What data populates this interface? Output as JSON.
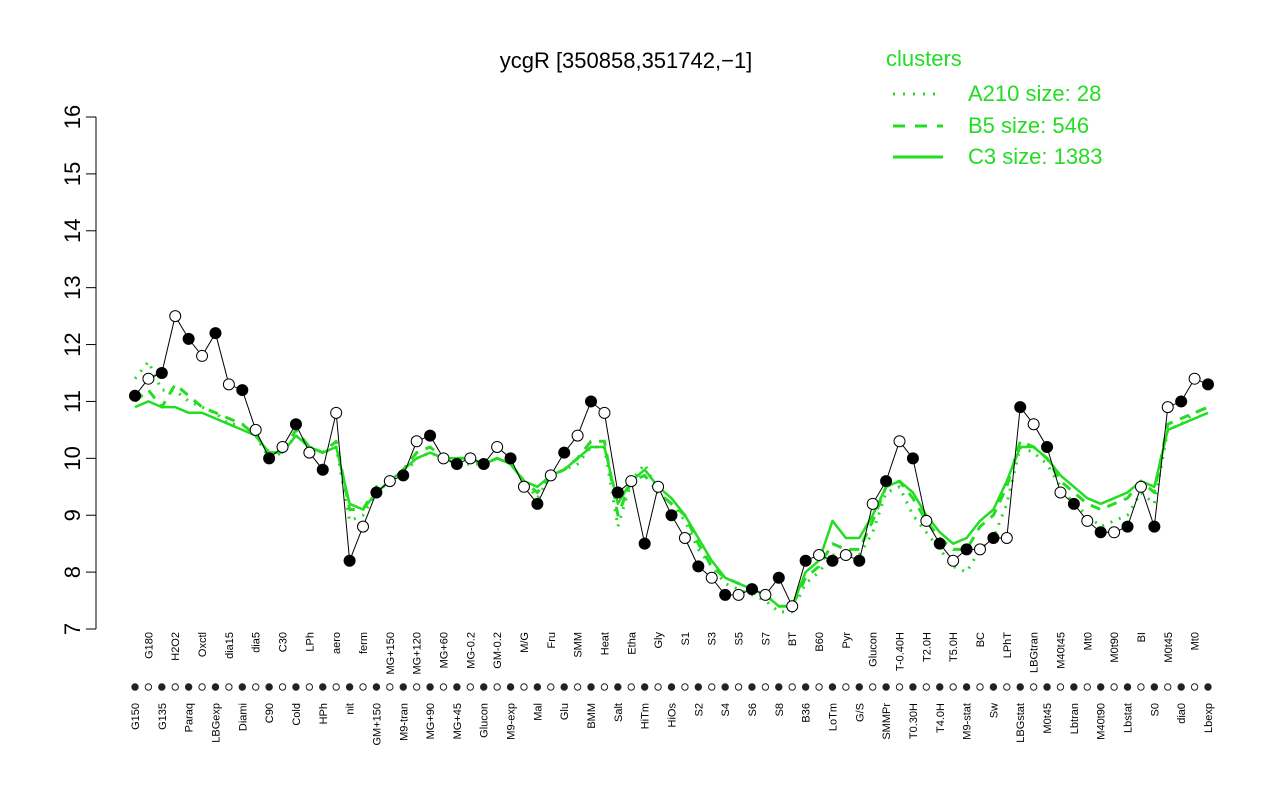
{
  "chart_data": {
    "type": "line",
    "title": "ycgR [350858,351742,−1]",
    "xlabel": "",
    "ylabel": "",
    "ylim": [
      7,
      16
    ],
    "yticks": [
      7,
      8,
      9,
      10,
      11,
      12,
      13,
      14,
      15,
      16
    ],
    "grid": false,
    "legend": {
      "title": "clusters",
      "placement": "top-right",
      "entries": [
        {
          "label": "A210 size: 28",
          "style": "dotted",
          "color": "#22dd22"
        },
        {
          "label": "B5 size: 546",
          "style": "dashed",
          "color": "#22dd22"
        },
        {
          "label": "C3 size: 1383",
          "style": "solid",
          "color": "#22dd22"
        }
      ]
    },
    "x_tick_labels": [
      "G150",
      "G180",
      "G135",
      "H2O2",
      "Paraq",
      "Oxctl",
      "LBGexp",
      "dia15",
      "Diami",
      "dia5",
      "C90",
      "C30",
      "Cold",
      "LPh",
      "HPh",
      "aero",
      "nit",
      "ferm",
      "GM+150",
      "MG+150",
      "M9-tran",
      "MG+120",
      "MG+90",
      "MG+60",
      "MG+45",
      "MG-0.2",
      "Glucon",
      "GM-0.2",
      "M9-exp",
      "M/G",
      "Mal",
      "Fru",
      "Glu",
      "SMM",
      "BMM",
      "Heat",
      "Salt",
      "Etha",
      "HiTm",
      "Gly",
      "HiOs",
      "S1",
      "S2",
      "S3",
      "S4",
      "S5",
      "S6",
      "S7",
      "S8",
      "BT",
      "B36",
      "B60",
      "LoTm",
      "Pyr",
      "G/S",
      "Glucon",
      "SMMPr",
      "T-0.40H",
      "T0.30H",
      "T2.0H",
      "T4.0H",
      "T5.0H",
      "M9-stat",
      "BC",
      "Sw",
      "LPhT",
      "LBGstat",
      "LBGtran",
      "M0t45",
      "M40t45",
      "Lbtran",
      "Mt0",
      "M40t90",
      "M0t90",
      "Lbstat",
      "BI",
      "S0",
      "M0t45",
      "dia0",
      "Mt0",
      "Lbexp"
    ],
    "series": [
      {
        "name": "",
        "style": "points",
        "values": [
          11.1,
          11.4,
          11.5,
          12.5,
          12.1,
          11.8,
          12.2,
          11.3,
          11.2,
          10.5,
          10.0,
          10.2,
          10.6,
          10.1,
          9.8,
          10.8,
          8.2,
          8.8,
          9.4,
          9.6,
          9.7,
          10.3,
          10.4,
          10.0,
          9.9,
          10.0,
          9.9,
          10.2,
          10.0,
          9.5,
          9.2,
          9.7,
          10.1,
          10.4,
          11.0,
          10.8,
          9.4,
          9.6,
          8.5,
          9.5,
          9.0,
          8.6,
          8.1,
          7.9,
          7.6,
          7.6,
          7.7,
          7.6,
          7.9,
          7.4,
          8.2,
          8.3,
          8.2,
          8.3,
          8.2,
          9.2,
          9.6,
          10.3,
          10.0,
          8.9,
          8.5,
          8.2,
          8.4,
          8.4,
          8.6,
          8.6,
          10.9,
          10.6,
          10.2,
          9.4,
          9.2,
          8.9,
          8.7,
          8.7,
          8.8,
          9.5,
          8.8,
          10.9,
          11.0,
          11.4,
          11.3
        ]
      },
      {
        "name": "",
        "style": "dotted",
        "values": [
          11.4,
          11.7,
          11.2,
          11.2,
          11.0,
          10.9,
          10.8,
          10.6,
          10.6,
          10.4,
          10.0,
          10.1,
          10.4,
          10.2,
          10.1,
          10.2,
          8.9,
          9.0,
          9.4,
          9.6,
          9.7,
          10.0,
          10.1,
          10.0,
          9.9,
          9.9,
          9.9,
          10.0,
          9.9,
          9.6,
          9.3,
          9.7,
          9.8,
          9.9,
          10.2,
          10.2,
          8.8,
          9.6,
          9.9,
          9.4,
          9.2,
          8.9,
          8.4,
          8.1,
          7.8,
          7.7,
          7.6,
          7.5,
          7.3,
          7.3,
          7.8,
          8.0,
          8.3,
          8.3,
          8.3,
          8.7,
          9.4,
          9.5,
          9.0,
          8.7,
          8.4,
          8.1,
          8.0,
          8.4,
          8.6,
          9.2,
          10.2,
          10.1,
          9.9,
          9.5,
          9.2,
          9.0,
          8.8,
          8.9,
          9.0,
          9.4,
          9.2,
          10.5,
          10.6,
          10.8,
          10.9
        ]
      },
      {
        "name": "",
        "style": "dashed",
        "values": [
          11.0,
          11.2,
          10.9,
          11.3,
          11.1,
          10.9,
          10.8,
          10.7,
          10.6,
          10.4,
          10.1,
          10.1,
          10.5,
          10.2,
          10.1,
          10.3,
          9.1,
          9.1,
          9.5,
          9.6,
          9.8,
          10.1,
          10.2,
          10.0,
          10.0,
          10.0,
          9.9,
          10.0,
          9.9,
          9.6,
          9.4,
          9.7,
          9.8,
          10.0,
          10.3,
          10.3,
          9.0,
          9.6,
          9.7,
          9.4,
          9.2,
          9.0,
          8.5,
          8.1,
          7.9,
          7.8,
          7.7,
          7.6,
          7.4,
          7.4,
          7.9,
          8.1,
          8.5,
          8.4,
          8.4,
          8.9,
          9.5,
          9.6,
          9.3,
          8.9,
          8.6,
          8.4,
          8.4,
          8.8,
          9.0,
          9.5,
          10.3,
          10.2,
          10.0,
          9.6,
          9.4,
          9.2,
          9.1,
          9.2,
          9.3,
          9.6,
          9.4,
          10.6,
          10.7,
          10.8,
          10.9
        ]
      },
      {
        "name": "",
        "style": "solid",
        "values": [
          10.9,
          11.0,
          10.9,
          10.9,
          10.8,
          10.8,
          10.7,
          10.6,
          10.5,
          10.4,
          10.1,
          10.1,
          10.4,
          10.2,
          10.1,
          10.2,
          9.2,
          9.1,
          9.4,
          9.6,
          9.8,
          10.0,
          10.1,
          10.0,
          10.0,
          10.0,
          9.9,
          10.0,
          9.9,
          9.6,
          9.5,
          9.7,
          9.8,
          10.0,
          10.2,
          10.2,
          9.2,
          9.6,
          9.8,
          9.5,
          9.3,
          9.0,
          8.6,
          8.2,
          7.9,
          7.8,
          7.7,
          7.6,
          7.4,
          7.4,
          8.0,
          8.2,
          8.9,
          8.6,
          8.6,
          9.0,
          9.5,
          9.6,
          9.4,
          9.0,
          8.7,
          8.5,
          8.6,
          8.9,
          9.1,
          9.6,
          10.2,
          10.2,
          10.0,
          9.7,
          9.5,
          9.3,
          9.2,
          9.3,
          9.4,
          9.6,
          9.5,
          10.5,
          10.6,
          10.7,
          10.8
        ]
      }
    ]
  }
}
